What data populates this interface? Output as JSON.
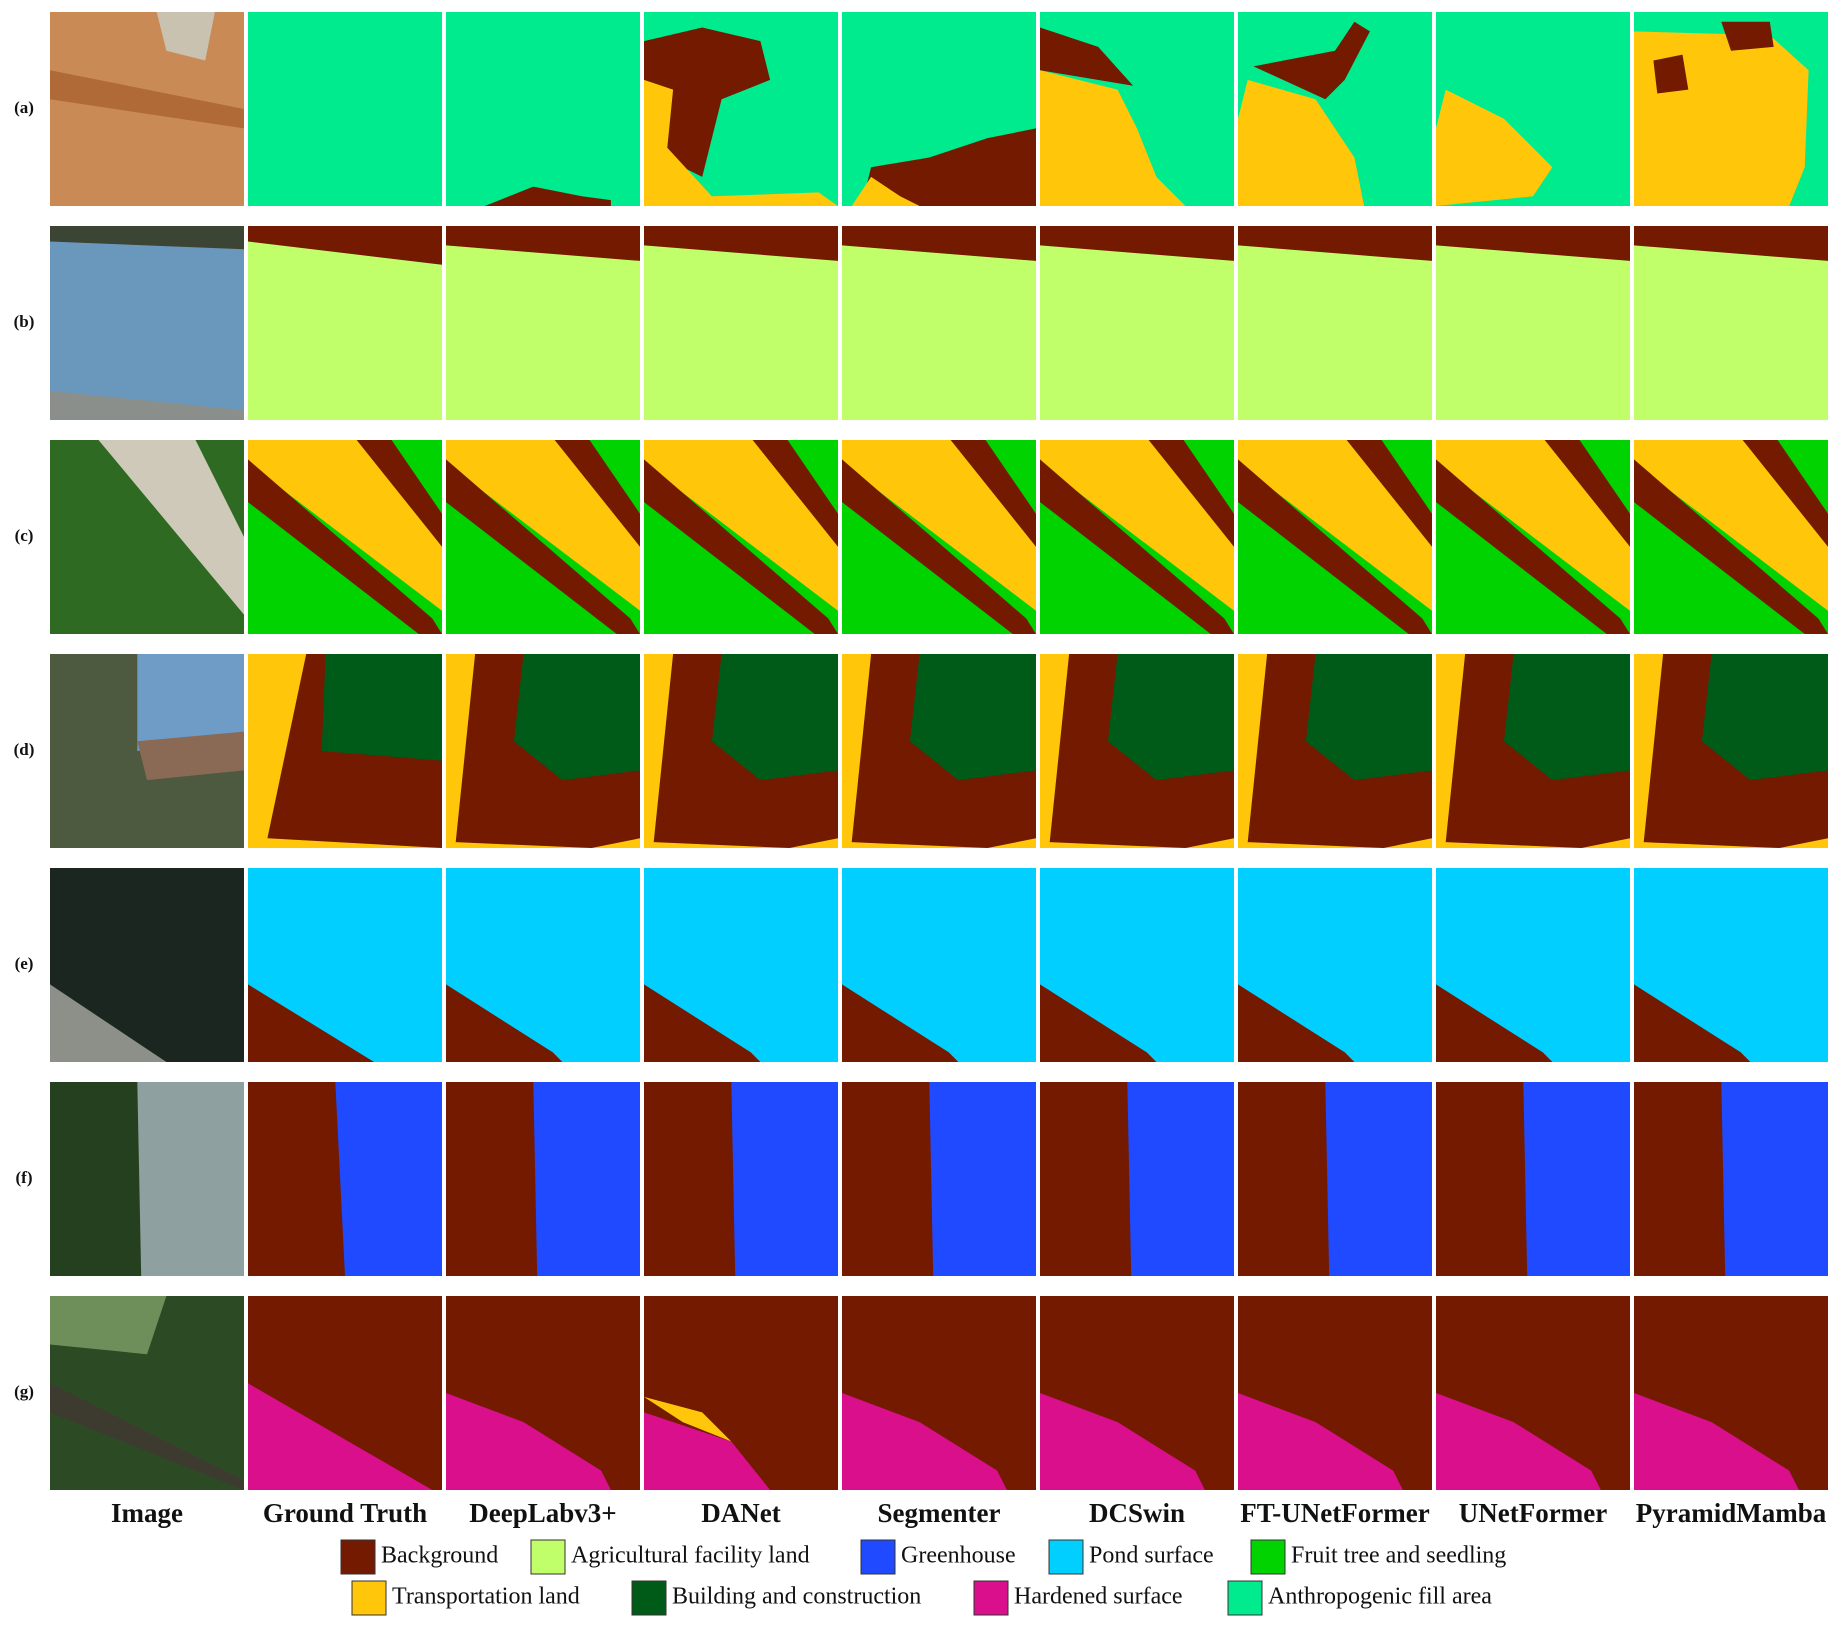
{
  "row_labels": [
    "(a)",
    "(b)",
    "(c)",
    "(d)",
    "(e)",
    "(f)",
    "(g)"
  ],
  "column_labels": [
    "Image",
    "Ground Truth",
    "DeepLabv3+",
    "DANet",
    "Segmenter",
    "DCSwin",
    "FT-UNetFormer",
    "UNetFormer",
    "PyramidMamba"
  ],
  "legend": [
    {
      "label": "Background",
      "color": "#741a01"
    },
    {
      "label": "Agricultural facility land",
      "color": "#c0ff6a"
    },
    {
      "label": "Greenhouse",
      "color": "#1f4aff"
    },
    {
      "label": "Pond surface",
      "color": "#00cfff"
    },
    {
      "label": "Fruit tree and seedling",
      "color": "#00d300"
    },
    {
      "label": "Transportation land",
      "color": "#ffc60a"
    },
    {
      "label": "Building and construction",
      "color": "#005a18"
    },
    {
      "label": "Hardened surface",
      "color": "#d90f8c"
    },
    {
      "label": "Anthropogenic fill area",
      "color": "#00ea8e"
    }
  ]
}
